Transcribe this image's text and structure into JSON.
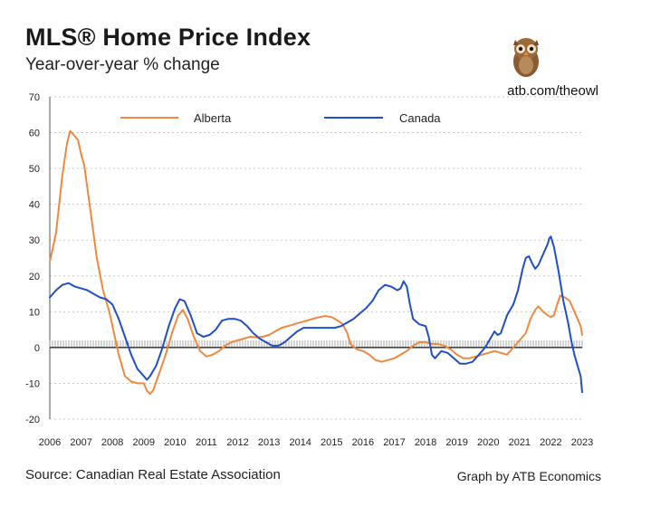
{
  "header": {
    "title": "MLS® Home Price Index",
    "subtitle": "Year-over-year % change",
    "brand_link": "atb.com/theowl",
    "logo_icon": "owl-icon"
  },
  "footer": {
    "source": "Source: Canadian Real Estate Association",
    "credit": "Graph by ATB Economics"
  },
  "chart_data": {
    "type": "line",
    "title": "MLS® Home Price Index",
    "subtitle": "Year-over-year % change",
    "xlabel": "",
    "ylabel": "",
    "ylim": [
      -20,
      70
    ],
    "yticks": [
      "70",
      "60",
      "50",
      "40",
      "30",
      "20",
      "10",
      "0",
      "-10",
      "-20"
    ],
    "xlim": [
      2006,
      2023
    ],
    "xticks": [
      "2006",
      "2007",
      "2008",
      "2009",
      "2010",
      "2011",
      "2012",
      "2013",
      "2014",
      "2015",
      "2016",
      "2017",
      "2018",
      "2019",
      "2020",
      "2021",
      "2022",
      "2023"
    ],
    "grid": true,
    "legend_position": "top",
    "series": [
      {
        "name": "Alberta",
        "color": "#F0883E",
        "points": [
          [
            2006.0,
            24
          ],
          [
            2006.2,
            32
          ],
          [
            2006.4,
            48
          ],
          [
            2006.55,
            57
          ],
          [
            2006.65,
            60.5
          ],
          [
            2006.8,
            59
          ],
          [
            2006.9,
            58
          ],
          [
            2007.0,
            54
          ],
          [
            2007.1,
            51
          ],
          [
            2007.3,
            38
          ],
          [
            2007.5,
            25
          ],
          [
            2007.7,
            16
          ],
          [
            2007.9,
            10
          ],
          [
            2008.0,
            6
          ],
          [
            2008.2,
            -2
          ],
          [
            2008.4,
            -8
          ],
          [
            2008.6,
            -9.5
          ],
          [
            2008.8,
            -10
          ],
          [
            2009.0,
            -10
          ],
          [
            2009.1,
            -12
          ],
          [
            2009.2,
            -13
          ],
          [
            2009.3,
            -12
          ],
          [
            2009.5,
            -7
          ],
          [
            2009.7,
            -2
          ],
          [
            2009.9,
            4
          ],
          [
            2010.1,
            9
          ],
          [
            2010.25,
            10.5
          ],
          [
            2010.4,
            8
          ],
          [
            2010.6,
            3
          ],
          [
            2010.8,
            -1
          ],
          [
            2011.0,
            -2.5
          ],
          [
            2011.2,
            -2
          ],
          [
            2011.4,
            -1
          ],
          [
            2011.6,
            0.5
          ],
          [
            2011.8,
            1.5
          ],
          [
            2012.0,
            2
          ],
          [
            2012.2,
            2.5
          ],
          [
            2012.4,
            3
          ],
          [
            2012.6,
            2.8
          ],
          [
            2012.8,
            3
          ],
          [
            2013.0,
            3.5
          ],
          [
            2013.2,
            4.5
          ],
          [
            2013.4,
            5.5
          ],
          [
            2013.6,
            6
          ],
          [
            2013.8,
            6.5
          ],
          [
            2014.0,
            7
          ],
          [
            2014.2,
            7.5
          ],
          [
            2014.4,
            8
          ],
          [
            2014.6,
            8.5
          ],
          [
            2014.8,
            8.8
          ],
          [
            2015.0,
            8.5
          ],
          [
            2015.2,
            7.5
          ],
          [
            2015.35,
            6.5
          ],
          [
            2015.5,
            4
          ],
          [
            2015.6,
            1
          ],
          [
            2015.8,
            -0.5
          ],
          [
            2016.0,
            -1
          ],
          [
            2016.2,
            -2
          ],
          [
            2016.4,
            -3.5
          ],
          [
            2016.6,
            -4
          ],
          [
            2016.8,
            -3.5
          ],
          [
            2017.0,
            -3
          ],
          [
            2017.2,
            -2
          ],
          [
            2017.4,
            -1
          ],
          [
            2017.6,
            0.5
          ],
          [
            2017.8,
            1.5
          ],
          [
            2018.0,
            1.5
          ],
          [
            2018.2,
            1
          ],
          [
            2018.4,
            1
          ],
          [
            2018.6,
            0.5
          ],
          [
            2018.8,
            -0.5
          ],
          [
            2019.0,
            -2
          ],
          [
            2019.2,
            -3
          ],
          [
            2019.4,
            -3
          ],
          [
            2019.6,
            -2.5
          ],
          [
            2019.8,
            -2
          ],
          [
            2020.0,
            -1.5
          ],
          [
            2020.2,
            -1
          ],
          [
            2020.4,
            -1.5
          ],
          [
            2020.6,
            -2
          ],
          [
            2020.8,
            0
          ],
          [
            2021.0,
            2
          ],
          [
            2021.2,
            4
          ],
          [
            2021.35,
            8
          ],
          [
            2021.5,
            10.5
          ],
          [
            2021.6,
            11.5
          ],
          [
            2021.75,
            10
          ],
          [
            2021.9,
            9
          ],
          [
            2022.0,
            8.5
          ],
          [
            2022.1,
            9
          ],
          [
            2022.2,
            12
          ],
          [
            2022.3,
            14.5
          ],
          [
            2022.45,
            14
          ],
          [
            2022.6,
            13
          ],
          [
            2022.75,
            10
          ],
          [
            2022.85,
            8
          ],
          [
            2022.95,
            6
          ],
          [
            2023.0,
            3.5
          ]
        ]
      },
      {
        "name": "Canada",
        "color": "#1F4FC8",
        "points": [
          [
            2006.0,
            14
          ],
          [
            2006.2,
            16
          ],
          [
            2006.4,
            17.5
          ],
          [
            2006.6,
            18
          ],
          [
            2006.8,
            17
          ],
          [
            2007.0,
            16.5
          ],
          [
            2007.2,
            16
          ],
          [
            2007.4,
            15
          ],
          [
            2007.6,
            14
          ],
          [
            2007.8,
            13.5
          ],
          [
            2008.0,
            12
          ],
          [
            2008.2,
            8
          ],
          [
            2008.4,
            3
          ],
          [
            2008.6,
            -2
          ],
          [
            2008.8,
            -6
          ],
          [
            2009.0,
            -8
          ],
          [
            2009.1,
            -9
          ],
          [
            2009.2,
            -8
          ],
          [
            2009.4,
            -5
          ],
          [
            2009.6,
            0
          ],
          [
            2009.8,
            6
          ],
          [
            2010.0,
            11
          ],
          [
            2010.15,
            13.5
          ],
          [
            2010.3,
            13
          ],
          [
            2010.5,
            9
          ],
          [
            2010.7,
            4
          ],
          [
            2010.9,
            3
          ],
          [
            2011.1,
            3.5
          ],
          [
            2011.3,
            5
          ],
          [
            2011.5,
            7.5
          ],
          [
            2011.7,
            8
          ],
          [
            2011.9,
            8
          ],
          [
            2012.1,
            7.5
          ],
          [
            2012.3,
            6
          ],
          [
            2012.5,
            4
          ],
          [
            2012.7,
            2.5
          ],
          [
            2012.9,
            1.5
          ],
          [
            2013.1,
            0.5
          ],
          [
            2013.3,
            0.5
          ],
          [
            2013.5,
            1.5
          ],
          [
            2013.7,
            3
          ],
          [
            2013.9,
            4.5
          ],
          [
            2014.1,
            5.5
          ],
          [
            2014.3,
            5.5
          ],
          [
            2014.5,
            5.5
          ],
          [
            2014.7,
            5.5
          ],
          [
            2014.9,
            5.5
          ],
          [
            2015.1,
            5.5
          ],
          [
            2015.3,
            6
          ],
          [
            2015.5,
            7
          ],
          [
            2015.7,
            8
          ],
          [
            2015.9,
            9.5
          ],
          [
            2016.1,
            11
          ],
          [
            2016.3,
            13
          ],
          [
            2016.5,
            16
          ],
          [
            2016.7,
            17.5
          ],
          [
            2016.9,
            17
          ],
          [
            2017.1,
            16
          ],
          [
            2017.2,
            16.5
          ],
          [
            2017.3,
            18.5
          ],
          [
            2017.4,
            17
          ],
          [
            2017.5,
            12
          ],
          [
            2017.6,
            8
          ],
          [
            2017.8,
            6.5
          ],
          [
            2018.0,
            6
          ],
          [
            2018.1,
            3
          ],
          [
            2018.2,
            -2
          ],
          [
            2018.3,
            -3
          ],
          [
            2018.5,
            -1
          ],
          [
            2018.7,
            -1.5
          ],
          [
            2018.9,
            -3
          ],
          [
            2019.1,
            -4.5
          ],
          [
            2019.3,
            -4.5
          ],
          [
            2019.5,
            -4
          ],
          [
            2019.7,
            -2
          ],
          [
            2019.9,
            0
          ],
          [
            2020.1,
            3
          ],
          [
            2020.2,
            4.5
          ],
          [
            2020.3,
            3.5
          ],
          [
            2020.4,
            4
          ],
          [
            2020.6,
            9
          ],
          [
            2020.8,
            12
          ],
          [
            2020.95,
            16
          ],
          [
            2021.1,
            22
          ],
          [
            2021.2,
            25
          ],
          [
            2021.3,
            25.5
          ],
          [
            2021.4,
            23.5
          ],
          [
            2021.5,
            22
          ],
          [
            2021.6,
            23
          ],
          [
            2021.75,
            26
          ],
          [
            2021.9,
            29
          ],
          [
            2021.95,
            30.5
          ],
          [
            2022.0,
            31
          ],
          [
            2022.1,
            28
          ],
          [
            2022.25,
            21
          ],
          [
            2022.4,
            13
          ],
          [
            2022.55,
            7
          ],
          [
            2022.65,
            2
          ],
          [
            2022.75,
            -2
          ],
          [
            2022.85,
            -5
          ],
          [
            2022.95,
            -8
          ],
          [
            2023.0,
            -12.5
          ]
        ]
      }
    ]
  }
}
